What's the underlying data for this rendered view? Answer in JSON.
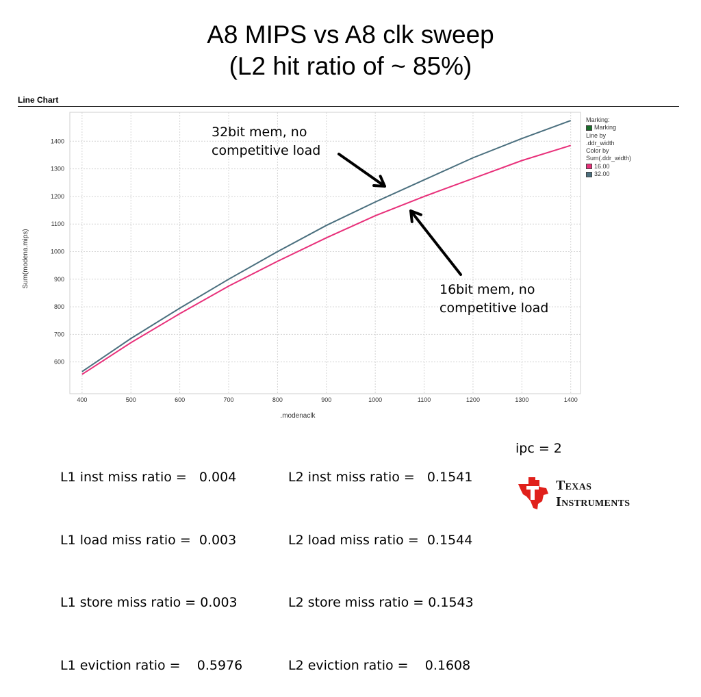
{
  "slide": {
    "title_line1": "A8 MIPS vs A8 clk sweep",
    "title_line2": "(L2 hit ratio of ~ 85%)"
  },
  "chart_header": "Line Chart",
  "chart_data": {
    "type": "line",
    "xlabel": ".modenaclk",
    "ylabel": "Sum(modena.mips)",
    "xlim": [
      375,
      1420
    ],
    "ylim": [
      485,
      1505
    ],
    "x_ticks": [
      400,
      500,
      600,
      700,
      800,
      900,
      1000,
      1100,
      1200,
      1300,
      1400
    ],
    "y_ticks": [
      600,
      700,
      800,
      900,
      1000,
      1100,
      1200,
      1300,
      1400
    ],
    "grid": true,
    "series": [
      {
        "name": "16.00",
        "color": "#e8307a",
        "x": [
          400,
          500,
          600,
          700,
          800,
          900,
          1000,
          1100,
          1200,
          1300,
          1400
        ],
        "y": [
          555,
          670,
          775,
          875,
          965,
          1050,
          1130,
          1200,
          1265,
          1330,
          1385
        ]
      },
      {
        "name": "32.00",
        "color": "#4a6f7e",
        "x": [
          400,
          500,
          600,
          700,
          800,
          900,
          1000,
          1100,
          1200,
          1300,
          1400
        ],
        "y": [
          565,
          685,
          795,
          900,
          1000,
          1095,
          1180,
          1260,
          1340,
          1410,
          1475
        ]
      }
    ]
  },
  "legend": {
    "marking_title": "Marking:",
    "marking_item": "Marking",
    "marking_color": "#1a6e2a",
    "line_by_title": "Line by",
    "line_by_value": ".ddr_width",
    "color_by_title": "Color by",
    "color_by_value": "Sum(.ddr_width)",
    "items": [
      {
        "label": "16.00",
        "color": "#e8307a"
      },
      {
        "label": "32.00",
        "color": "#4a6f7e"
      }
    ]
  },
  "annotations": {
    "a32_line1": "32bit mem, no",
    "a32_line2": "competitive load",
    "a16_line1": "16bit mem, no",
    "a16_line2": "competitive load"
  },
  "stats": {
    "l1": [
      "L1 inst miss ratio =   0.004",
      "L1 load miss ratio =  0.003",
      "L1 store miss ratio = 0.003",
      "L1 eviction ratio =    0.5976"
    ],
    "l2": [
      "L2 inst miss ratio =   0.1541",
      "L2 load miss ratio =  0.1544",
      "L2 store miss ratio = 0.1543",
      "L2 eviction ratio =    0.1608"
    ],
    "ipc": "ipc = 2"
  },
  "logo": {
    "line1": "Texas",
    "line2": "Instruments",
    "color": "#e0201b"
  }
}
